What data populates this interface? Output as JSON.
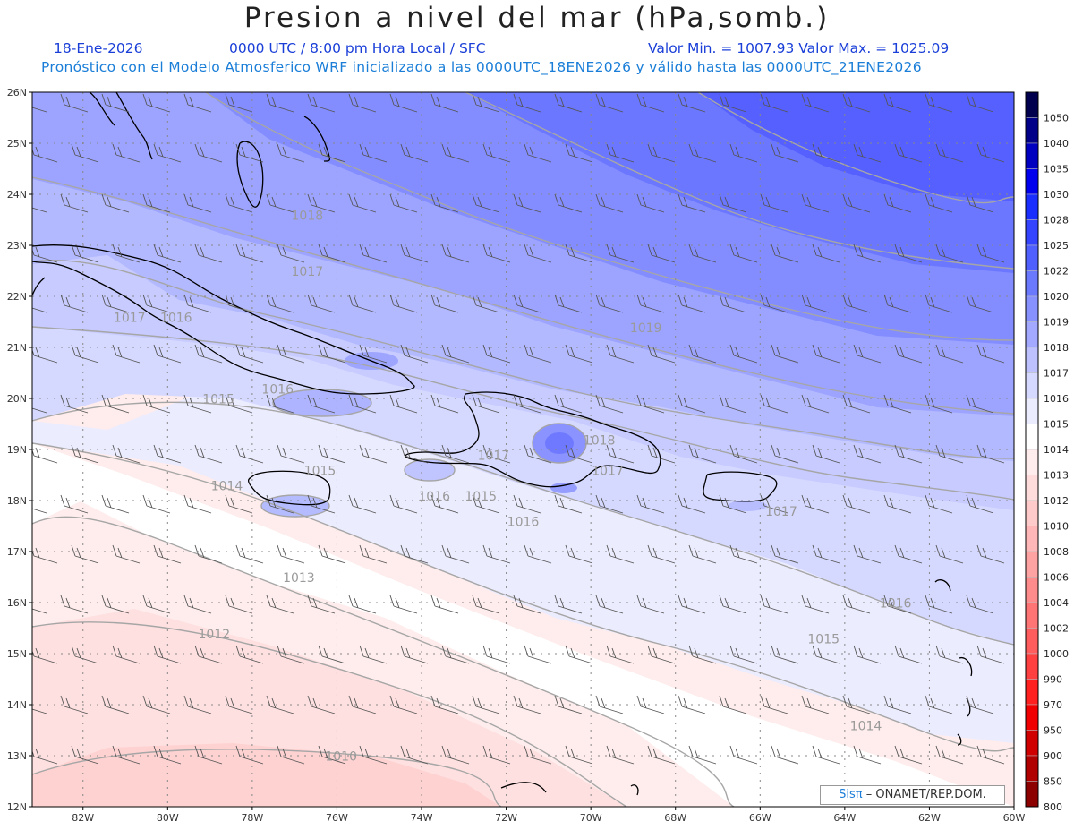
{
  "title": "Presion a nivel del mar (hPa,somb.)",
  "header": {
    "date": "18-Ene-2026",
    "time": "0000 UTC / 8:00 pm Hora Local / SFC",
    "minmax": "Valor Min. = 1007.93  Valor Max. = 1025.09",
    "model": "Pronóstico con el Modelo Atmosferico WRF inicializado a las 0000UTC_18ENE2026 y válido hasta las  0000UTC_21ENE2026"
  },
  "map": {
    "lat_labels": [
      "26N",
      "25N",
      "24N",
      "23N",
      "22N",
      "21N",
      "20N",
      "19N",
      "18N",
      "17N",
      "16N",
      "15N",
      "14N",
      "13N",
      "12N"
    ],
    "lon_labels": [
      "82W",
      "80W",
      "78W",
      "76W",
      "74W",
      "72W",
      "70W",
      "68W",
      "66W",
      "64W",
      "62W",
      "60W"
    ],
    "lat_range": [
      12,
      26
    ],
    "lon_range": [
      -83.2,
      -60
    ],
    "contour_labels": [
      {
        "text": "1018",
        "lon": -76.7,
        "lat": 23.5
      },
      {
        "text": "1017",
        "lon": -76.7,
        "lat": 22.4
      },
      {
        "text": "1017",
        "lon": -80.9,
        "lat": 21.5
      },
      {
        "text": "1016",
        "lon": -79.8,
        "lat": 21.5
      },
      {
        "text": "1019",
        "lon": -68.7,
        "lat": 21.3
      },
      {
        "text": "1016",
        "lon": -77.4,
        "lat": 20.1
      },
      {
        "text": "1015",
        "lon": -78.8,
        "lat": 19.9
      },
      {
        "text": "1018",
        "lon": -69.8,
        "lat": 19.1
      },
      {
        "text": "1017",
        "lon": -72.3,
        "lat": 18.8
      },
      {
        "text": "1017",
        "lon": -69.6,
        "lat": 18.5
      },
      {
        "text": "1015",
        "lon": -76.4,
        "lat": 18.5
      },
      {
        "text": "1014",
        "lon": -78.6,
        "lat": 18.2
      },
      {
        "text": "1016",
        "lon": -73.7,
        "lat": 18.0
      },
      {
        "text": "1015",
        "lon": -72.6,
        "lat": 18.0
      },
      {
        "text": "1016",
        "lon": -71.6,
        "lat": 17.5
      },
      {
        "text": "1017",
        "lon": -65.5,
        "lat": 17.7
      },
      {
        "text": "1013",
        "lon": -76.9,
        "lat": 16.4
      },
      {
        "text": "1016",
        "lon": -62.8,
        "lat": 15.9
      },
      {
        "text": "1012",
        "lon": -78.9,
        "lat": 15.3
      },
      {
        "text": "1015",
        "lon": -64.5,
        "lat": 15.2
      },
      {
        "text": "1014",
        "lon": -63.5,
        "lat": 13.5
      },
      {
        "text": "1010",
        "lon": -75.9,
        "lat": 12.9
      }
    ]
  },
  "colorbar": {
    "labels": [
      "1050",
      "1040",
      "1035",
      "1030",
      "1028",
      "1025",
      "1022",
      "1020",
      "1019",
      "1018",
      "1017",
      "1016",
      "1015",
      "1014",
      "1013",
      "1012",
      "1010",
      "1008",
      "1006",
      "1004",
      "1002",
      "1000",
      "990",
      "970",
      "950",
      "900",
      "850",
      "800"
    ],
    "colors": [
      "#00004e",
      "#000088",
      "#0000c0",
      "#0000ee",
      "#1a2fff",
      "#3545ff",
      "#5060ff",
      "#6b79ff",
      "#8791ff",
      "#a2a9ff",
      "#bdc1ff",
      "#d6d9ff",
      "#ececff",
      "#ffffff",
      "#ffeded",
      "#ffdcdc",
      "#ffcaca",
      "#ffb7b7",
      "#ffa2a2",
      "#ff8c8c",
      "#ff7575",
      "#ff5d5d",
      "#ff4040",
      "#ff2020",
      "#f00000",
      "#d00000",
      "#b00000",
      "#8c0000"
    ]
  },
  "credit": {
    "sis": "Sisπ",
    "rest": "– ONAMET/REP.DOM."
  }
}
